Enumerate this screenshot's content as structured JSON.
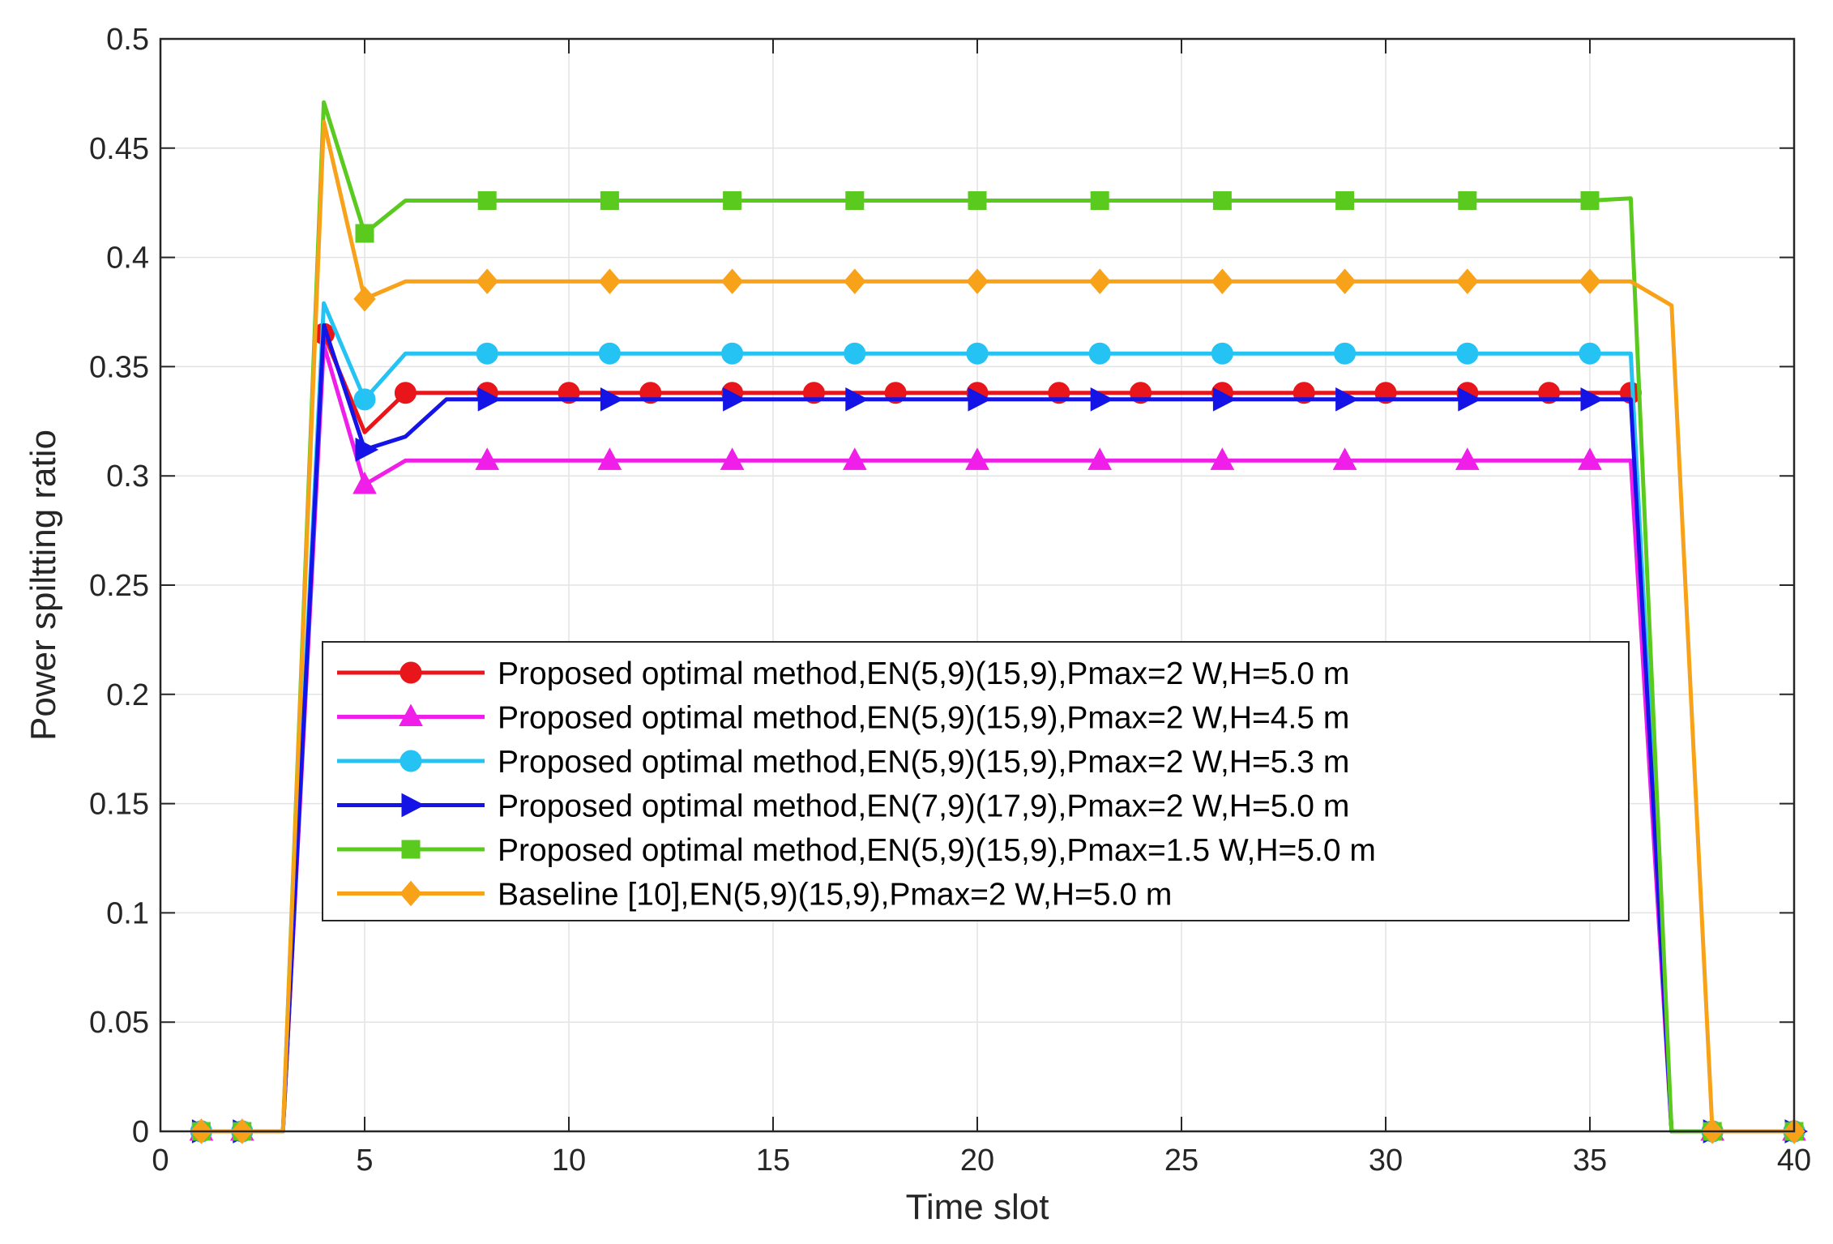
{
  "chart_data": {
    "type": "line",
    "xlabel": "Time slot",
    "ylabel": "Power spiltting ratio",
    "xlim": [
      0,
      40
    ],
    "ylim": [
      0,
      0.5
    ],
    "grid": true,
    "legend_position": "center-left",
    "x_ticks": [
      {
        "value": 0,
        "label": "0"
      },
      {
        "value": 5,
        "label": "5"
      },
      {
        "value": 10,
        "label": "10"
      },
      {
        "value": 15,
        "label": "15"
      },
      {
        "value": 20,
        "label": "20"
      },
      {
        "value": 25,
        "label": "25"
      },
      {
        "value": 30,
        "label": "30"
      },
      {
        "value": 35,
        "label": "35"
      },
      {
        "value": 40,
        "label": "40"
      }
    ],
    "y_ticks": [
      {
        "value": 0,
        "label": "0"
      },
      {
        "value": 0.05,
        "label": "0.05"
      },
      {
        "value": 0.1,
        "label": "0.1"
      },
      {
        "value": 0.15,
        "label": "0.15"
      },
      {
        "value": 0.2,
        "label": "0.2"
      },
      {
        "value": 0.25,
        "label": "0.25"
      },
      {
        "value": 0.3,
        "label": "0.3"
      },
      {
        "value": 0.35,
        "label": "0.35"
      },
      {
        "value": 0.4,
        "label": "0.4"
      },
      {
        "value": 0.45,
        "label": "0.45"
      },
      {
        "value": 0.5,
        "label": "0.5"
      }
    ],
    "series": [
      {
        "name": "Proposed optimal method,EN(5,9)(15,9),Pmax=2 W,H=5.0 m",
        "color": "#e8161b",
        "marker": "circle",
        "marker_every": 2,
        "marker_start": 1,
        "x": [
          1,
          2,
          3,
          4,
          5,
          6,
          7,
          8,
          9,
          10,
          11,
          12,
          13,
          14,
          15,
          16,
          17,
          18,
          19,
          20,
          21,
          22,
          23,
          24,
          25,
          26,
          27,
          28,
          29,
          30,
          31,
          32,
          33,
          34,
          35,
          36,
          37,
          38,
          39,
          40
        ],
        "y": [
          0,
          0,
          0,
          0.365,
          0.32,
          0.338,
          0.338,
          0.338,
          0.338,
          0.338,
          0.338,
          0.338,
          0.338,
          0.338,
          0.338,
          0.338,
          0.338,
          0.338,
          0.338,
          0.338,
          0.338,
          0.338,
          0.338,
          0.338,
          0.338,
          0.338,
          0.338,
          0.338,
          0.338,
          0.338,
          0.338,
          0.338,
          0.338,
          0.338,
          0.338,
          0.338,
          0,
          0,
          0,
          0
        ]
      },
      {
        "name": "Proposed optimal method,EN(5,9)(15,9),Pmax=2 W,H=4.5 m",
        "color": "#ef1ee8",
        "marker": "triangle-up",
        "marker_every": 3,
        "marker_start": 1,
        "x": [
          1,
          2,
          3,
          4,
          5,
          6,
          7,
          8,
          9,
          10,
          11,
          12,
          13,
          14,
          15,
          16,
          17,
          18,
          19,
          20,
          21,
          22,
          23,
          24,
          25,
          26,
          27,
          28,
          29,
          30,
          31,
          32,
          33,
          34,
          35,
          36,
          37,
          38,
          39,
          40
        ],
        "y": [
          0,
          0,
          0,
          0.36,
          0.296,
          0.307,
          0.307,
          0.307,
          0.307,
          0.307,
          0.307,
          0.307,
          0.307,
          0.307,
          0.307,
          0.307,
          0.307,
          0.307,
          0.307,
          0.307,
          0.307,
          0.307,
          0.307,
          0.307,
          0.307,
          0.307,
          0.307,
          0.307,
          0.307,
          0.307,
          0.307,
          0.307,
          0.307,
          0.307,
          0.307,
          0.307,
          0,
          0,
          0,
          0
        ]
      },
      {
        "name": "Proposed optimal method,EN(5,9)(15,9),Pmax=2 W,H=5.3 m",
        "color": "#25c3f4",
        "marker": "circle",
        "marker_every": 3,
        "marker_start": 1,
        "x": [
          1,
          2,
          3,
          4,
          5,
          6,
          7,
          8,
          9,
          10,
          11,
          12,
          13,
          14,
          15,
          16,
          17,
          18,
          19,
          20,
          21,
          22,
          23,
          24,
          25,
          26,
          27,
          28,
          29,
          30,
          31,
          32,
          33,
          34,
          35,
          36,
          37,
          38,
          39,
          40
        ],
        "y": [
          0,
          0,
          0,
          0.379,
          0.335,
          0.356,
          0.356,
          0.356,
          0.356,
          0.356,
          0.356,
          0.356,
          0.356,
          0.356,
          0.356,
          0.356,
          0.356,
          0.356,
          0.356,
          0.356,
          0.356,
          0.356,
          0.356,
          0.356,
          0.356,
          0.356,
          0.356,
          0.356,
          0.356,
          0.356,
          0.356,
          0.356,
          0.356,
          0.356,
          0.356,
          0.356,
          0,
          0,
          0,
          0
        ]
      },
      {
        "name": "Proposed optimal method,EN(7,9)(17,9),Pmax=2 W,H=5.0 m",
        "color": "#1414e6",
        "marker": "triangle-right",
        "marker_every": 3,
        "marker_start": 1,
        "x": [
          1,
          2,
          3,
          4,
          5,
          6,
          7,
          8,
          9,
          10,
          11,
          12,
          13,
          14,
          15,
          16,
          17,
          18,
          19,
          20,
          21,
          22,
          23,
          24,
          25,
          26,
          27,
          28,
          29,
          30,
          31,
          32,
          33,
          34,
          35,
          36,
          37,
          38,
          39,
          40
        ],
        "y": [
          0,
          0,
          0,
          0.369,
          0.312,
          0.318,
          0.335,
          0.335,
          0.335,
          0.335,
          0.335,
          0.335,
          0.335,
          0.335,
          0.335,
          0.335,
          0.335,
          0.335,
          0.335,
          0.335,
          0.335,
          0.335,
          0.335,
          0.335,
          0.335,
          0.335,
          0.335,
          0.335,
          0.335,
          0.335,
          0.335,
          0.335,
          0.335,
          0.335,
          0.335,
          0.335,
          0,
          0,
          0,
          0
        ]
      },
      {
        "name": "Proposed optimal method,EN(5,9)(15,9),Pmax=1.5 W,H=5.0 m",
        "color": "#5acb1e",
        "marker": "square",
        "marker_every": 3,
        "marker_start": 1,
        "x": [
          1,
          2,
          3,
          4,
          5,
          6,
          7,
          8,
          9,
          10,
          11,
          12,
          13,
          14,
          15,
          16,
          17,
          18,
          19,
          20,
          21,
          22,
          23,
          24,
          25,
          26,
          27,
          28,
          29,
          30,
          31,
          32,
          33,
          34,
          35,
          36,
          37,
          38,
          39,
          40
        ],
        "y": [
          0,
          0,
          0,
          0.471,
          0.411,
          0.426,
          0.426,
          0.426,
          0.426,
          0.426,
          0.426,
          0.426,
          0.426,
          0.426,
          0.426,
          0.426,
          0.426,
          0.426,
          0.426,
          0.426,
          0.426,
          0.426,
          0.426,
          0.426,
          0.426,
          0.426,
          0.426,
          0.426,
          0.426,
          0.426,
          0.426,
          0.426,
          0.426,
          0.426,
          0.426,
          0.427,
          0,
          0,
          0,
          0
        ]
      },
      {
        "name": "Baseline [10],EN(5,9)(15,9),Pmax=2 W,H=5.0 m",
        "color": "#f8a21a",
        "marker": "diamond",
        "marker_every": 3,
        "marker_start": 1,
        "x": [
          1,
          2,
          3,
          4,
          5,
          6,
          7,
          8,
          9,
          10,
          11,
          12,
          13,
          14,
          15,
          16,
          17,
          18,
          19,
          20,
          21,
          22,
          23,
          24,
          25,
          26,
          27,
          28,
          29,
          30,
          31,
          32,
          33,
          34,
          35,
          36,
          37,
          38,
          39,
          40
        ],
        "y": [
          0,
          0,
          0,
          0.462,
          0.381,
          0.389,
          0.389,
          0.389,
          0.389,
          0.389,
          0.389,
          0.389,
          0.389,
          0.389,
          0.389,
          0.389,
          0.389,
          0.389,
          0.389,
          0.389,
          0.389,
          0.389,
          0.389,
          0.389,
          0.389,
          0.389,
          0.389,
          0.389,
          0.389,
          0.389,
          0.389,
          0.389,
          0.389,
          0.389,
          0.389,
          0.389,
          0.378,
          0,
          0,
          0
        ]
      }
    ]
  }
}
